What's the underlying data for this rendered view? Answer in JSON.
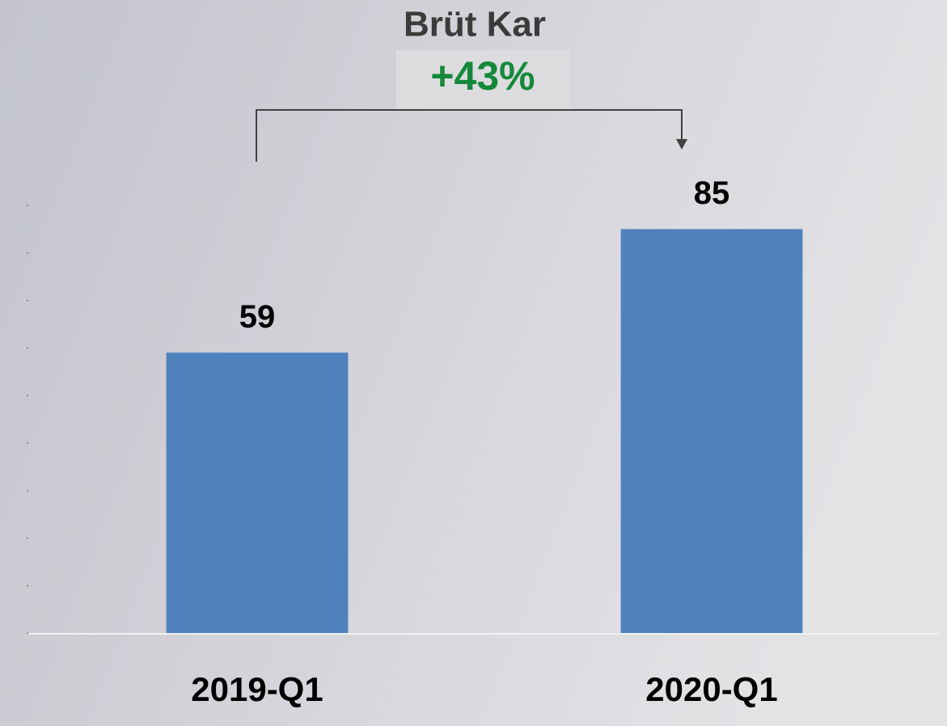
{
  "chart_data": {
    "type": "bar",
    "title": "Brüt Kar",
    "annotation": "+43%",
    "categories": [
      "2019-Q1",
      "2020-Q1"
    ],
    "values": [
      59,
      85
    ],
    "color": "#4f81bd",
    "ylim": [
      0,
      90
    ],
    "yticks": [
      0,
      10,
      20,
      30,
      40,
      50,
      60,
      70,
      80,
      90
    ]
  }
}
